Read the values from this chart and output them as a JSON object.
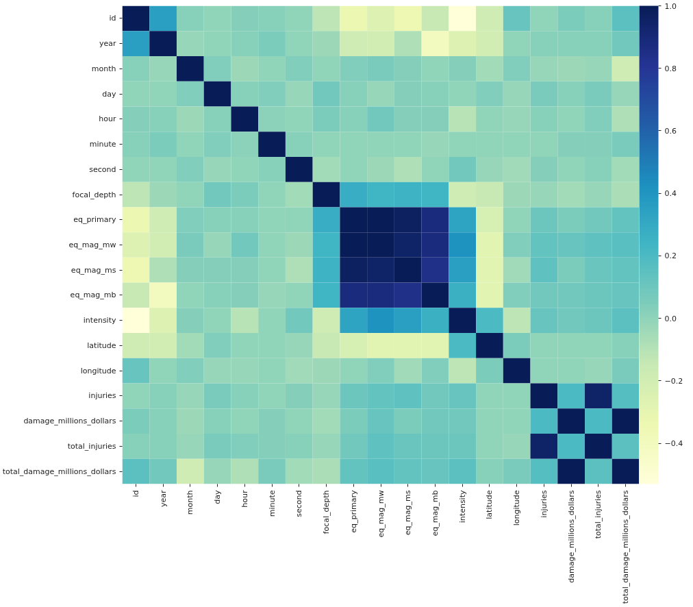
{
  "chart_data": {
    "type": "heatmap",
    "categories": [
      "id",
      "year",
      "month",
      "day",
      "hour",
      "minute",
      "second",
      "focal_depth",
      "eq_primary",
      "eq_mag_mw",
      "eq_mag_ms",
      "eq_mag_mb",
      "intensity",
      "latitude",
      "longitude",
      "injuries",
      "damage_millions_dollars",
      "total_injuries",
      "total_damage_millions_dollars"
    ],
    "y_categories": [
      "id",
      "year",
      "month",
      "day",
      "hour",
      "minute",
      "second",
      "focal_depth",
      "eq_primary",
      "eq_mag_mw",
      "eq_mag_ms",
      "eq_mag_mb",
      "intensity",
      "latitude",
      "longitude",
      "injuries",
      "damage_millions_dollars",
      "total_injuries",
      "total_damage_millions_dollars"
    ],
    "cells": [
      [
        1,
        0.35,
        0.02,
        0.0,
        0.03,
        0.02,
        0.0,
        -0.12,
        -0.33,
        -0.25,
        -0.35,
        -0.15,
        -0.53,
        -0.18,
        0.12,
        0.0,
        0.05,
        0.02,
        0.15
      ],
      [
        0.35,
        1,
        -0.02,
        0.0,
        0.02,
        0.05,
        0.0,
        -0.03,
        -0.18,
        -0.2,
        -0.08,
        -0.4,
        -0.25,
        -0.2,
        0.0,
        0.02,
        0.02,
        0.02,
        0.08
      ],
      [
        0.02,
        -0.02,
        1,
        0.04,
        -0.03,
        0.0,
        0.04,
        0.0,
        0.04,
        0.06,
        0.03,
        0.0,
        0.03,
        -0.05,
        0.04,
        -0.02,
        -0.03,
        -0.02,
        -0.18
      ],
      [
        0.0,
        0.0,
        0.04,
        1,
        0.02,
        0.04,
        -0.02,
        0.08,
        0.02,
        -0.02,
        0.03,
        0.02,
        0.0,
        0.04,
        -0.02,
        0.06,
        0.02,
        0.06,
        -0.02
      ],
      [
        0.03,
        0.02,
        -0.03,
        0.02,
        1,
        0.01,
        0.0,
        0.05,
        0.02,
        0.08,
        0.03,
        0.03,
        -0.1,
        0.0,
        -0.02,
        0.02,
        0.0,
        0.04,
        -0.08
      ],
      [
        0.02,
        0.05,
        0.0,
        0.04,
        0.01,
        1,
        0.02,
        0.0,
        0.0,
        0.0,
        0.0,
        -0.02,
        0.0,
        0.0,
        0.0,
        0.0,
        0.03,
        0.03,
        0.06
      ],
      [
        0.0,
        0.0,
        0.04,
        -0.02,
        0.0,
        0.02,
        1,
        -0.05,
        0.0,
        -0.03,
        -0.08,
        0.0,
        0.08,
        -0.02,
        -0.04,
        0.03,
        0.0,
        0.02,
        -0.05
      ],
      [
        -0.12,
        -0.03,
        0.0,
        0.08,
        0.05,
        0.0,
        -0.05,
        1,
        0.28,
        0.24,
        0.25,
        0.24,
        -0.18,
        -0.15,
        -0.03,
        -0.02,
        -0.05,
        -0.02,
        -0.07
      ],
      [
        -0.33,
        -0.18,
        0.04,
        0.02,
        0.02,
        0.0,
        0.0,
        0.28,
        1,
        1,
        0.97,
        0.88,
        0.33,
        -0.22,
        0.0,
        0.1,
        0.05,
        0.08,
        0.13
      ],
      [
        -0.25,
        -0.2,
        0.06,
        -0.02,
        0.08,
        0.0,
        -0.03,
        0.24,
        1,
        1,
        0.95,
        0.88,
        0.42,
        -0.28,
        0.04,
        0.13,
        0.12,
        0.14,
        0.16
      ],
      [
        -0.35,
        -0.08,
        0.03,
        0.03,
        0.03,
        0.0,
        -0.08,
        0.25,
        0.97,
        0.95,
        1,
        0.84,
        0.35,
        -0.28,
        -0.04,
        0.14,
        0.05,
        0.11,
        0.13
      ],
      [
        -0.15,
        -0.4,
        0.0,
        0.02,
        0.03,
        -0.02,
        0.0,
        0.24,
        0.88,
        0.88,
        0.84,
        1,
        0.27,
        -0.28,
        0.04,
        0.08,
        0.08,
        0.1,
        0.12
      ],
      [
        -0.53,
        -0.25,
        0.03,
        0.0,
        -0.1,
        0.0,
        0.08,
        -0.18,
        0.33,
        0.42,
        0.35,
        0.27,
        1,
        0.2,
        -0.12,
        0.12,
        0.08,
        0.1,
        0.15
      ],
      [
        -0.18,
        -0.2,
        -0.05,
        0.04,
        0.0,
        0.0,
        -0.02,
        -0.15,
        -0.22,
        -0.28,
        -0.28,
        -0.28,
        0.2,
        1,
        0.05,
        0.0,
        0.0,
        0.0,
        0.02
      ],
      [
        0.12,
        0.0,
        0.04,
        -0.02,
        -0.02,
        0.0,
        -0.04,
        -0.03,
        0.0,
        0.04,
        -0.04,
        0.04,
        -0.12,
        0.05,
        1,
        0.0,
        0.0,
        -0.02,
        0.06
      ],
      [
        0.0,
        0.02,
        -0.02,
        0.06,
        0.02,
        0.0,
        0.03,
        -0.02,
        0.1,
        0.13,
        0.14,
        0.08,
        0.12,
        0.0,
        0.0,
        1,
        0.2,
        0.95,
        0.17
      ],
      [
        0.05,
        0.02,
        -0.03,
        0.02,
        0.0,
        0.03,
        0.0,
        -0.05,
        0.05,
        0.12,
        0.05,
        0.08,
        0.08,
        0.0,
        0.0,
        0.2,
        1,
        0.2,
        1
      ],
      [
        0.02,
        0.02,
        -0.02,
        0.06,
        0.04,
        0.03,
        0.02,
        -0.02,
        0.08,
        0.14,
        0.11,
        0.1,
        0.1,
        0.0,
        -0.02,
        0.95,
        0.2,
        1,
        0.15
      ],
      [
        0.15,
        0.08,
        -0.18,
        -0.02,
        -0.08,
        0.06,
        -0.05,
        -0.07,
        0.13,
        0.16,
        0.13,
        0.12,
        0.15,
        0.02,
        0.06,
        0.17,
        1,
        0.15,
        1
      ]
    ],
    "clim": [
      -0.53,
      1.0
    ],
    "cticks": [
      {
        "value": -0.4,
        "label": "−0.4"
      },
      {
        "value": -0.2,
        "label": "−0.2"
      },
      {
        "value": 0.0,
        "label": "0.0"
      },
      {
        "value": 0.2,
        "label": "0.2"
      },
      {
        "value": 0.4,
        "label": "0.4"
      },
      {
        "value": 0.6,
        "label": "0.6"
      },
      {
        "value": 0.8,
        "label": "0.8"
      },
      {
        "value": 1.0,
        "label": "1.0"
      }
    ]
  }
}
